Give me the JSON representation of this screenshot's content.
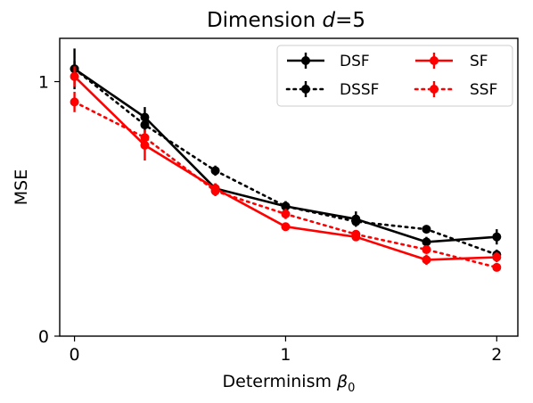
{
  "chart_data": {
    "type": "line",
    "title_prefix": "Dimension ",
    "title_var": "d",
    "title_suffix": "=5",
    "xlabel_text": "Determinism ",
    "xlabel_var": "β",
    "xlabel_sub": "0",
    "ylabel": "MSE",
    "xlim": [
      -0.07,
      2.1
    ],
    "ylim": [
      0,
      1.17
    ],
    "xticks": [
      0,
      1,
      2
    ],
    "xtick_labels": [
      "0",
      "1",
      "2"
    ],
    "yticks": [
      0,
      1
    ],
    "ytick_labels": [
      "0",
      "1"
    ],
    "legend_position": "top-right",
    "x": [
      0,
      0.333,
      0.667,
      1.0,
      1.333,
      1.667,
      2.0
    ],
    "series": [
      {
        "name": "DSF",
        "color": "#000000",
        "style": "solid",
        "values": [
          1.05,
          0.86,
          0.58,
          0.51,
          0.46,
          0.37,
          0.39
        ],
        "errors": [
          0.08,
          0.04,
          0.02,
          0.02,
          0.03,
          0.02,
          0.03
        ]
      },
      {
        "name": "DSSF",
        "color": "#000000",
        "style": "dotted",
        "values": [
          1.05,
          0.83,
          0.65,
          0.51,
          0.45,
          0.42,
          0.32
        ],
        "errors": [
          0.03,
          0.03,
          0.02,
          0.02,
          0.02,
          0.015,
          0.02
        ]
      },
      {
        "name": "SF",
        "color": "#ff0000",
        "style": "solid",
        "values": [
          1.02,
          0.75,
          0.58,
          0.43,
          0.39,
          0.3,
          0.31
        ],
        "errors": [
          0.04,
          0.06,
          0.02,
          0.01,
          0.015,
          0.02,
          0.02
        ]
      },
      {
        "name": "SSF",
        "color": "#ff0000",
        "style": "dotted",
        "values": [
          0.92,
          0.78,
          0.57,
          0.48,
          0.4,
          0.34,
          0.27
        ],
        "errors": [
          0.04,
          0.03,
          0.02,
          0.02,
          0.015,
          0.015,
          0.015
        ]
      }
    ]
  }
}
